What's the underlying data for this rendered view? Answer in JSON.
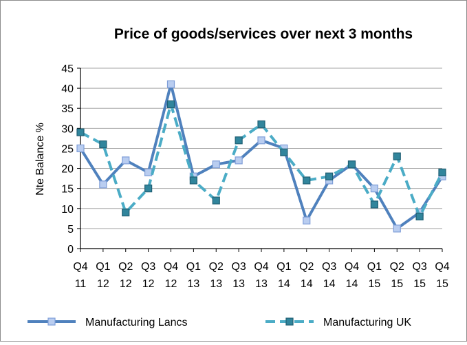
{
  "chart_data": {
    "type": "line",
    "title": "Price of goods/services over next 3 months",
    "xlabel": "",
    "ylabel": "Nte Balance %",
    "ylim": [
      0,
      45
    ],
    "yticks": [
      "0",
      "5",
      "10",
      "15",
      "20",
      "25",
      "30",
      "35",
      "40",
      "45"
    ],
    "grid": true,
    "legend_position": "bottom",
    "categories": [
      [
        "Q4",
        "11"
      ],
      [
        "Q1",
        "12"
      ],
      [
        "Q2",
        "12"
      ],
      [
        "Q3",
        "12"
      ],
      [
        "Q4",
        "12"
      ],
      [
        "Q1",
        "13"
      ],
      [
        "Q2",
        "13"
      ],
      [
        "Q3",
        "13"
      ],
      [
        "Q4",
        "13"
      ],
      [
        "Q1",
        "14"
      ],
      [
        "Q2",
        "14"
      ],
      [
        "Q3",
        "14"
      ],
      [
        "Q4",
        "14"
      ],
      [
        "Q1",
        "15"
      ],
      [
        "Q2",
        "15"
      ],
      [
        "Q3",
        "15"
      ],
      [
        "Q4",
        "15"
      ]
    ],
    "series": [
      {
        "name": "Manufacturing Lancs",
        "color": "#4f81bd",
        "marker_fill": "#b9cdf0",
        "marker_stroke": "#7f9ed8",
        "line_style": "solid",
        "values": [
          25,
          16,
          22,
          19,
          41,
          18,
          21,
          22,
          27,
          25,
          7,
          17,
          21,
          15,
          5,
          9,
          18
        ]
      },
      {
        "name": "Manufacturing UK",
        "color": "#4bacc6",
        "marker_fill": "#31859c",
        "marker_stroke": "#1f5f73",
        "line_style": "dashed",
        "values": [
          29,
          26,
          9,
          15,
          36,
          17,
          12,
          27,
          31,
          24,
          17,
          18,
          21,
          11,
          23,
          8,
          19
        ]
      }
    ]
  }
}
